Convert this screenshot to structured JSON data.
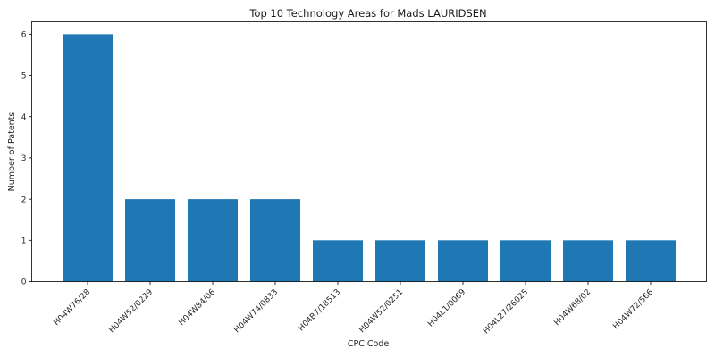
{
  "chart_data": {
    "type": "bar",
    "title": "Top 10 Technology Areas for Mads LAURIDSEN",
    "xlabel": "CPC Code",
    "ylabel": "Number of Patents",
    "categories": [
      "H04W76/28",
      "H04W52/0229",
      "H04W84/06",
      "H04W74/0833",
      "H04B7/18513",
      "H04W52/0251",
      "H04L1/0069",
      "H04L27/26025",
      "H04W68/02",
      "H04W72/566"
    ],
    "values": [
      6,
      2,
      2,
      2,
      1,
      1,
      1,
      1,
      1,
      1
    ],
    "ylim": [
      0,
      6.3
    ],
    "yticks": [
      "0",
      "1",
      "2",
      "3",
      "4",
      "5",
      "6"
    ],
    "grid": false,
    "bar_color": "#1f77b4"
  }
}
